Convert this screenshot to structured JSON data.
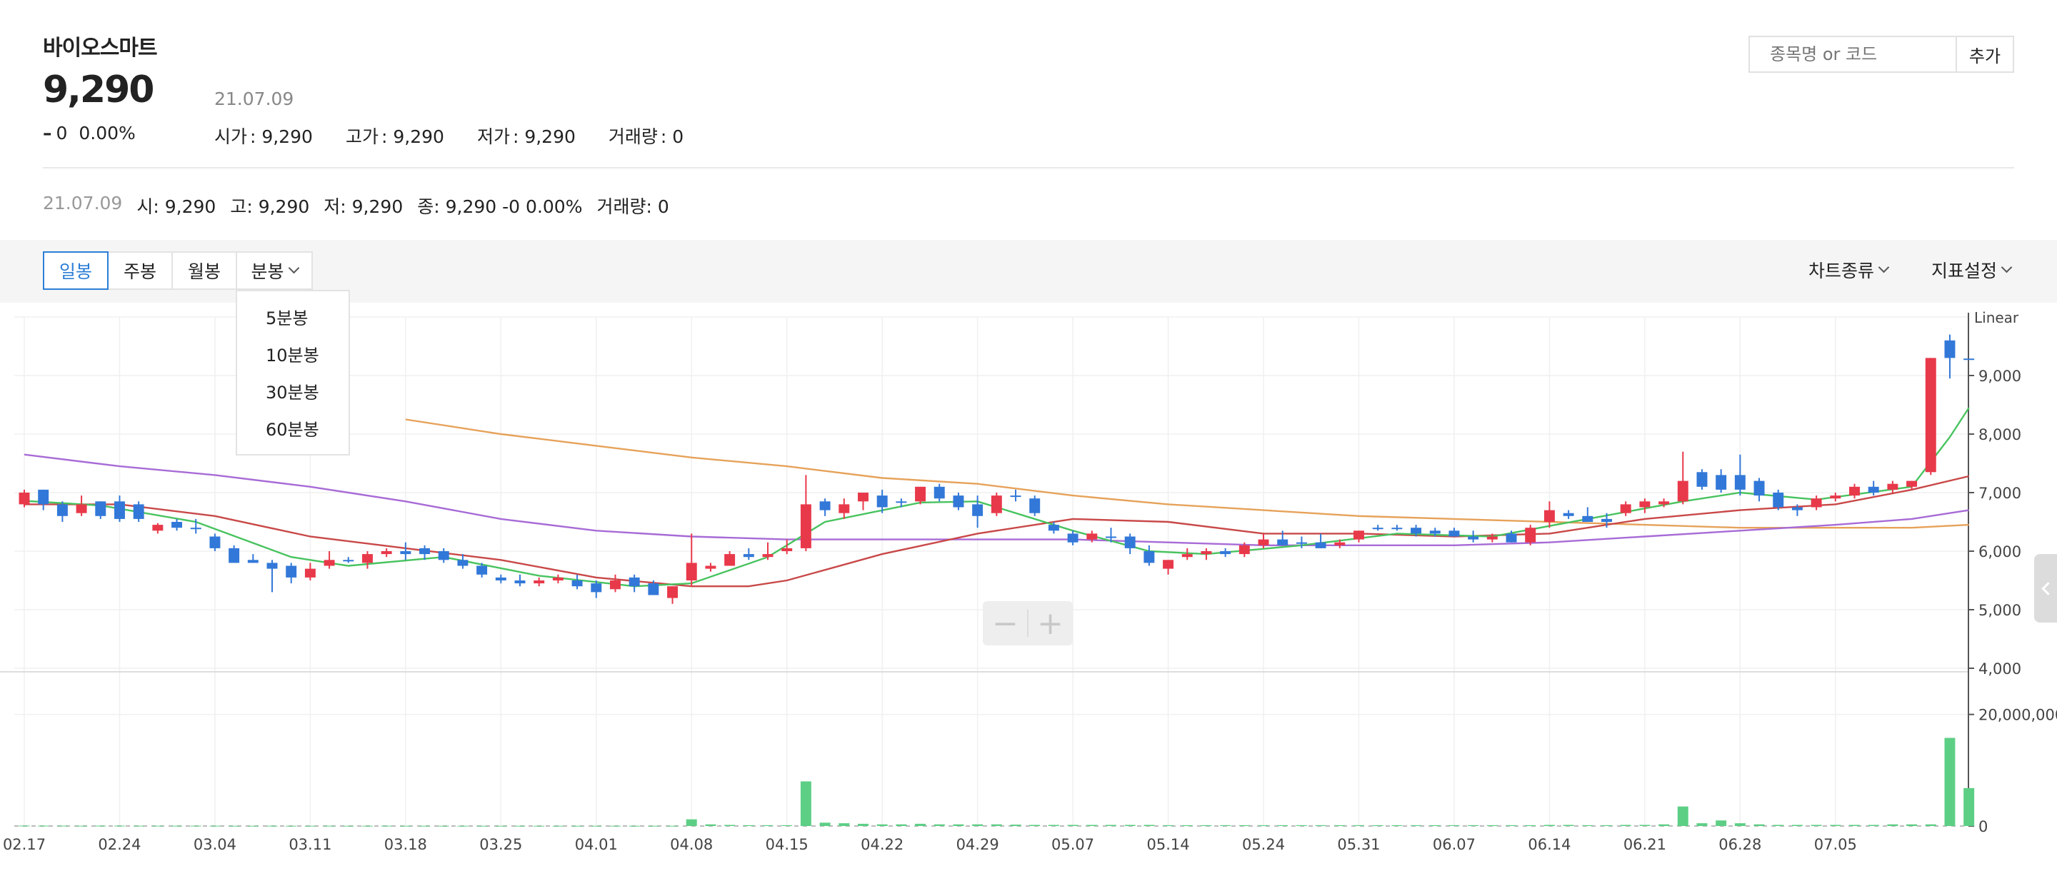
{
  "stock": {
    "name": "바이오스마트",
    "price": "9,290",
    "change": "0",
    "change_pct": "0.00%",
    "date": "21.07.09",
    "open_label": "시가",
    "open": "9,290",
    "high_label": "고가",
    "high": "9,290",
    "low_label": "저가",
    "low": "9,290",
    "volume_label": "거래량",
    "volume": "0"
  },
  "search": {
    "placeholder": "종목명 or 코드",
    "add_label": "추가"
  },
  "detail": {
    "date": "21.07.09",
    "open_label": "시",
    "open": "9,290",
    "high_label": "고",
    "high": "9,290",
    "low_label": "저",
    "low": "9,290",
    "close_label": "종",
    "close": "9,290",
    "change": "-0",
    "change_pct": "0.00%",
    "volume_label": "거래량",
    "volume": "0"
  },
  "toolbar": {
    "periods": [
      "일봉",
      "주봉",
      "월봉",
      "분봉"
    ],
    "active_period": "일봉",
    "chart_type_label": "차트종류",
    "indicator_label": "지표설정",
    "minute_options": [
      "5분봉",
      "10분봉",
      "30분봉",
      "60분봉"
    ]
  },
  "zoom": {
    "minus": "−",
    "plus": "+"
  },
  "colors": {
    "up": "#e8394a",
    "down": "#3278d8",
    "volume": "#5dcf85",
    "ma5": "#48c35f",
    "ma20": "#c94848",
    "ma60": "#a76bd6",
    "ma120": "#e6a25a",
    "accent": "#2c7ed6"
  },
  "chart_data": {
    "type": "candlestick",
    "scale_label": "Linear",
    "price_axis": {
      "ticks": [
        "9,000",
        "8,000",
        "7,000",
        "6,000",
        "5,000",
        "4,000"
      ],
      "values": [
        9000,
        8000,
        7000,
        6000,
        5000,
        4000
      ],
      "range": [
        4000,
        10000
      ]
    },
    "volume_axis": {
      "ticks": [
        "20,000,000",
        "0"
      ],
      "values": [
        20000000,
        0
      ],
      "range": [
        0,
        27000000
      ]
    },
    "x_labels": [
      "02.17",
      "02.24",
      "03.04",
      "03.11",
      "03.18",
      "03.25",
      "04.01",
      "04.08",
      "04.15",
      "04.22",
      "04.29",
      "05.07",
      "05.14",
      "05.24",
      "05.31",
      "06.07",
      "06.14",
      "06.21",
      "06.28",
      "07.05"
    ],
    "x_label_index": [
      0,
      5,
      10,
      15,
      20,
      25,
      30,
      35,
      40,
      45,
      50,
      55,
      60,
      65,
      70,
      75,
      80,
      85,
      90,
      95
    ],
    "candles": [
      [
        6800,
        7050,
        6750,
        7000
      ],
      [
        7050,
        7050,
        6700,
        6800
      ],
      [
        6800,
        6850,
        6500,
        6600
      ],
      [
        6650,
        6950,
        6600,
        6800
      ],
      [
        6850,
        6850,
        6550,
        6600
      ],
      [
        6850,
        6950,
        6500,
        6550
      ],
      [
        6800,
        6850,
        6500,
        6550
      ],
      [
        6350,
        6480,
        6300,
        6450
      ],
      [
        6500,
        6550,
        6350,
        6400
      ],
      [
        6400,
        6550,
        6300,
        6400
      ],
      [
        6250,
        6300,
        6000,
        6050
      ],
      [
        6050,
        6100,
        5800,
        5800
      ],
      [
        5850,
        5950,
        5800,
        5800
      ],
      [
        5800,
        5850,
        5300,
        5700
      ],
      [
        5750,
        5800,
        5450,
        5550
      ],
      [
        5550,
        5800,
        5500,
        5700
      ],
      [
        5750,
        6000,
        5700,
        5850
      ],
      [
        5850,
        5900,
        5800,
        5850
      ],
      [
        5800,
        6000,
        5700,
        5950
      ],
      [
        5950,
        6050,
        5900,
        6000
      ],
      [
        6000,
        6150,
        5850,
        5950
      ],
      [
        6050,
        6100,
        5850,
        5950
      ],
      [
        6000,
        6050,
        5800,
        5850
      ],
      [
        5850,
        5950,
        5700,
        5750
      ],
      [
        5750,
        5800,
        5550,
        5600
      ],
      [
        5550,
        5600,
        5450,
        5500
      ],
      [
        5500,
        5600,
        5400,
        5450
      ],
      [
        5450,
        5550,
        5400,
        5500
      ],
      [
        5500,
        5600,
        5450,
        5550
      ],
      [
        5500,
        5600,
        5350,
        5400
      ],
      [
        5450,
        5500,
        5200,
        5300
      ],
      [
        5350,
        5600,
        5300,
        5500
      ],
      [
        5550,
        5600,
        5300,
        5400
      ],
      [
        5450,
        5500,
        5250,
        5250
      ],
      [
        5200,
        5400,
        5100,
        5400
      ],
      [
        5500,
        6300,
        5400,
        5800
      ],
      [
        5700,
        5800,
        5650,
        5750
      ],
      [
        5750,
        6000,
        5750,
        5950
      ],
      [
        5950,
        6050,
        5850,
        5900
      ],
      [
        5900,
        6150,
        5850,
        5950
      ],
      [
        6000,
        6200,
        5950,
        6050
      ],
      [
        6050,
        7300,
        6000,
        6800
      ],
      [
        6850,
        6900,
        6600,
        6700
      ],
      [
        6650,
        6900,
        6550,
        6800
      ],
      [
        6850,
        7000,
        6700,
        7000
      ],
      [
        6950,
        7050,
        6650,
        6750
      ],
      [
        6850,
        6900,
        6750,
        6850
      ],
      [
        6850,
        7100,
        6800,
        7100
      ],
      [
        7100,
        7150,
        6850,
        6900
      ],
      [
        6950,
        7000,
        6700,
        6750
      ],
      [
        6800,
        6950,
        6400,
        6600
      ],
      [
        6650,
        7000,
        6600,
        6950
      ],
      [
        6950,
        7050,
        6850,
        6950
      ],
      [
        6900,
        6950,
        6600,
        6650
      ],
      [
        6450,
        6500,
        6300,
        6350
      ],
      [
        6300,
        6350,
        6100,
        6150
      ],
      [
        6200,
        6350,
        6150,
        6300
      ],
      [
        6250,
        6400,
        6150,
        6250
      ],
      [
        6250,
        6300,
        5950,
        6050
      ],
      [
        6000,
        6100,
        5750,
        5800
      ],
      [
        5700,
        5850,
        5600,
        5850
      ],
      [
        5900,
        6050,
        5850,
        5950
      ],
      [
        5950,
        6050,
        5850,
        6000
      ],
      [
        6000,
        6050,
        5900,
        5950
      ],
      [
        5950,
        6150,
        5900,
        6100
      ],
      [
        6100,
        6300,
        6050,
        6200
      ],
      [
        6200,
        6350,
        6100,
        6100
      ],
      [
        6150,
        6250,
        6050,
        6150
      ],
      [
        6150,
        6300,
        6050,
        6050
      ],
      [
        6100,
        6200,
        6050,
        6150
      ],
      [
        6200,
        6350,
        6150,
        6350
      ],
      [
        6400,
        6450,
        6350,
        6400
      ],
      [
        6400,
        6450,
        6350,
        6400
      ],
      [
        6400,
        6450,
        6250,
        6300
      ],
      [
        6350,
        6400,
        6250,
        6300
      ],
      [
        6350,
        6400,
        6250,
        6250
      ],
      [
        6250,
        6350,
        6150,
        6200
      ],
      [
        6200,
        6300,
        6150,
        6250
      ],
      [
        6300,
        6350,
        6150,
        6150
      ],
      [
        6150,
        6450,
        6100,
        6400
      ],
      [
        6500,
        6850,
        6400,
        6700
      ],
      [
        6650,
        6700,
        6550,
        6600
      ],
      [
        6600,
        6750,
        6500,
        6500
      ],
      [
        6550,
        6650,
        6400,
        6500
      ],
      [
        6650,
        6850,
        6600,
        6800
      ],
      [
        6750,
        6900,
        6650,
        6850
      ],
      [
        6800,
        6900,
        6750,
        6850
      ],
      [
        6850,
        7700,
        6800,
        7200
      ],
      [
        7350,
        7400,
        7050,
        7100
      ],
      [
        7300,
        7400,
        7000,
        7050
      ],
      [
        7300,
        7650,
        6950,
        7050
      ],
      [
        7200,
        7250,
        6850,
        6950
      ],
      [
        7000,
        7050,
        6700,
        6750
      ],
      [
        6750,
        6800,
        6600,
        6700
      ],
      [
        6750,
        6950,
        6700,
        6900
      ],
      [
        6900,
        7000,
        6850,
        6950
      ],
      [
        6950,
        7150,
        6900,
        7100
      ],
      [
        7100,
        7200,
        6950,
        7000
      ],
      [
        7050,
        7200,
        7000,
        7150
      ],
      [
        7100,
        7200,
        7050,
        7200
      ],
      [
        7350,
        9300,
        7300,
        9300
      ],
      [
        9600,
        9700,
        8950,
        9300
      ],
      [
        9290,
        9290,
        9290,
        9290
      ]
    ],
    "volume": [
      80000,
      60000,
      60000,
      50000,
      60000,
      60000,
      50000,
      50000,
      50000,
      50000,
      50000,
      40000,
      40000,
      50000,
      40000,
      40000,
      50000,
      40000,
      40000,
      50000,
      40000,
      40000,
      40000,
      40000,
      40000,
      40000,
      40000,
      40000,
      40000,
      40000,
      40000,
      40000,
      40000,
      40000,
      40000,
      1200000,
      300000,
      200000,
      150000,
      150000,
      150000,
      8000000,
      600000,
      500000,
      400000,
      300000,
      300000,
      400000,
      300000,
      300000,
      300000,
      300000,
      250000,
      200000,
      200000,
      200000,
      200000,
      200000,
      200000,
      200000,
      150000,
      150000,
      150000,
      150000,
      150000,
      150000,
      150000,
      150000,
      150000,
      150000,
      150000,
      150000,
      150000,
      150000,
      150000,
      150000,
      150000,
      150000,
      150000,
      150000,
      200000,
      200000,
      150000,
      150000,
      200000,
      200000,
      300000,
      3500000,
      500000,
      1000000,
      500000,
      300000,
      200000,
      200000,
      200000,
      200000,
      200000,
      200000,
      300000,
      300000,
      300000,
      15800000,
      6800000,
      0
    ],
    "ma5": [
      [
        0,
        6860
      ],
      [
        4,
        6780
      ],
      [
        9,
        6500
      ],
      [
        14,
        5900
      ],
      [
        17,
        5750
      ],
      [
        22,
        5900
      ],
      [
        27,
        5580
      ],
      [
        32,
        5400
      ],
      [
        35,
        5450
      ],
      [
        39,
        5900
      ],
      [
        42,
        6500
      ],
      [
        47,
        6830
      ],
      [
        50,
        6850
      ],
      [
        55,
        6350
      ],
      [
        59,
        6000
      ],
      [
        62,
        5950
      ],
      [
        67,
        6100
      ],
      [
        72,
        6300
      ],
      [
        77,
        6250
      ],
      [
        82,
        6550
      ],
      [
        87,
        6850
      ],
      [
        90,
        7000
      ],
      [
        94,
        6880
      ],
      [
        99,
        7100
      ],
      [
        101,
        7950
      ],
      [
        102,
        8450
      ]
    ],
    "ma20": [
      [
        0,
        6800
      ],
      [
        5,
        6800
      ],
      [
        10,
        6600
      ],
      [
        15,
        6250
      ],
      [
        20,
        6050
      ],
      [
        25,
        5850
      ],
      [
        30,
        5550
      ],
      [
        35,
        5400
      ],
      [
        38,
        5400
      ],
      [
        40,
        5500
      ],
      [
        45,
        5950
      ],
      [
        50,
        6300
      ],
      [
        55,
        6550
      ],
      [
        60,
        6500
      ],
      [
        65,
        6300
      ],
      [
        70,
        6300
      ],
      [
        75,
        6250
      ],
      [
        80,
        6300
      ],
      [
        85,
        6550
      ],
      [
        90,
        6700
      ],
      [
        95,
        6800
      ],
      [
        99,
        7050
      ],
      [
        102,
        7280
      ]
    ],
    "ma60": [
      [
        0,
        7650
      ],
      [
        5,
        7450
      ],
      [
        10,
        7300
      ],
      [
        15,
        7100
      ],
      [
        20,
        6850
      ],
      [
        25,
        6550
      ],
      [
        30,
        6350
      ],
      [
        35,
        6250
      ],
      [
        40,
        6200
      ],
      [
        45,
        6200
      ],
      [
        50,
        6200
      ],
      [
        55,
        6200
      ],
      [
        60,
        6150
      ],
      [
        65,
        6100
      ],
      [
        70,
        6100
      ],
      [
        75,
        6100
      ],
      [
        80,
        6150
      ],
      [
        85,
        6250
      ],
      [
        90,
        6350
      ],
      [
        95,
        6450
      ],
      [
        99,
        6550
      ],
      [
        102,
        6700
      ]
    ],
    "ma120": [
      [
        20,
        8250
      ],
      [
        25,
        8000
      ],
      [
        30,
        7800
      ],
      [
        35,
        7600
      ],
      [
        40,
        7450
      ],
      [
        45,
        7250
      ],
      [
        50,
        7150
      ],
      [
        55,
        6950
      ],
      [
        60,
        6800
      ],
      [
        65,
        6700
      ],
      [
        70,
        6600
      ],
      [
        75,
        6550
      ],
      [
        80,
        6500
      ],
      [
        85,
        6450
      ],
      [
        90,
        6400
      ],
      [
        95,
        6400
      ],
      [
        99,
        6400
      ],
      [
        102,
        6450
      ]
    ]
  }
}
